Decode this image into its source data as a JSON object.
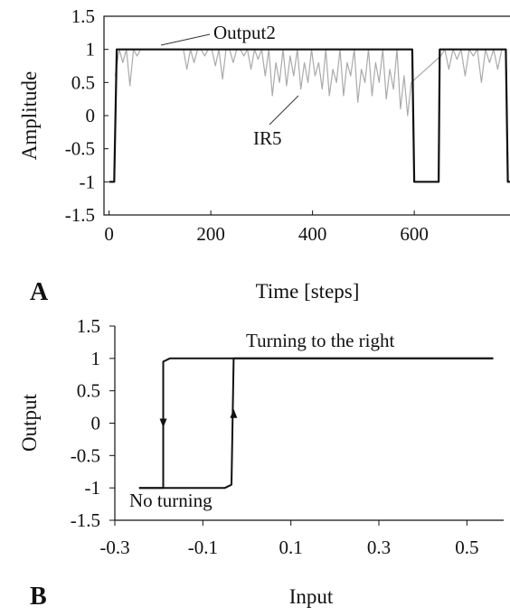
{
  "chart_data": [
    {
      "panel_label": "A",
      "type": "line",
      "xlabel": "Time [steps]",
      "ylabel": "Amplitude",
      "xlim": [
        -10,
        790
      ],
      "ylim": [
        -1.5,
        1.5
      ],
      "xticks": [
        0,
        200,
        400,
        600
      ],
      "yticks": [
        1.5,
        1,
        0.5,
        0,
        -0.5,
        -1,
        -1.5
      ],
      "xtick_labels": [
        "0",
        "200",
        "400",
        "600"
      ],
      "ytick_labels": [
        "1.5",
        "1",
        "0.5",
        "0",
        "-0.5",
        "-1",
        "-1.5"
      ],
      "series": [
        {
          "name": "Output2",
          "color": "#111111",
          "x": [
            0,
            10,
            15,
            596,
            600,
            648,
            650,
            780,
            784,
            790
          ],
          "y": [
            -1,
            -1,
            1,
            1,
            -1,
            -1,
            1,
            1,
            -1,
            -1
          ]
        },
        {
          "name": "IR5",
          "color": "#aaaaaa",
          "x": [
            12,
            20,
            27,
            34,
            41,
            48,
            55,
            62,
            69,
            76,
            83,
            90,
            97,
            104,
            111,
            118,
            125,
            132,
            139,
            146,
            153,
            160,
            167,
            174,
            181,
            188,
            195,
            202,
            209,
            216,
            223,
            230,
            237,
            244,
            251,
            258,
            265,
            272,
            279,
            286,
            293,
            300,
            307,
            314,
            321,
            328,
            335,
            342,
            349,
            356,
            363,
            370,
            377,
            384,
            391,
            398,
            405,
            412,
            419,
            426,
            433,
            440,
            447,
            454,
            461,
            468,
            475,
            482,
            489,
            496,
            503,
            510,
            517,
            524,
            531,
            538,
            545,
            552,
            559,
            566,
            573,
            580,
            587,
            594,
            652,
            660,
            668,
            676,
            684,
            692,
            700,
            708,
            716,
            724,
            732,
            740,
            748,
            756,
            764,
            772
          ],
          "y": [
            0.6,
            1,
            0.8,
            1,
            0.45,
            1,
            0.9,
            1,
            1,
            1,
            1,
            1,
            1,
            1,
            1,
            1,
            1,
            1,
            1,
            1,
            0.7,
            1,
            0.8,
            1,
            1,
            0.9,
            1,
            1,
            0.75,
            1,
            0.55,
            1,
            1,
            0.8,
            1,
            1,
            0.9,
            1,
            0.7,
            1,
            0.85,
            1,
            0.6,
            1,
            0.3,
            0.8,
            0.5,
            1,
            0.45,
            0.9,
            0.6,
            1,
            0.4,
            0.8,
            0.5,
            1,
            0.6,
            0.8,
            0.4,
            1,
            0.3,
            0.7,
            0.5,
            1,
            0.3,
            0.8,
            0.6,
            1,
            0.2,
            0.7,
            0.5,
            1,
            0.3,
            0.8,
            0.5,
            1,
            0.25,
            0.7,
            0.4,
            1,
            0.1,
            0.6,
            0.0,
            0.5,
            0.9,
            1,
            0.7,
            1,
            0.85,
            1,
            0.6,
            1,
            0.9,
            1,
            0.5,
            1,
            0.8,
            1,
            0.7,
            1
          ]
        }
      ],
      "annotations": [
        "Output2",
        "IR5"
      ]
    },
    {
      "panel_label": "B",
      "type": "line",
      "xlabel": "Input",
      "ylabel": "Output",
      "xlim": [
        -0.3,
        0.6
      ],
      "ylim": [
        -1.5,
        1.5
      ],
      "xticks": [
        -0.3,
        -0.1,
        0.1,
        0.3,
        0.5
      ],
      "yticks": [
        1.5,
        1,
        0.5,
        0,
        -0.5,
        -1,
        -1.5
      ],
      "xtick_labels": [
        "-0.3",
        "-0.1",
        "0.1",
        "0.3",
        "0.5"
      ],
      "ytick_labels": [
        "1.5",
        "1",
        "0.5",
        "0",
        "-0.5",
        "-1",
        "-1.5"
      ],
      "series": [
        {
          "color": "#111111",
          "x": [
            0.56,
            -0.03,
            -0.175,
            -0.19,
            -0.19,
            -0.245
          ],
          "y": [
            1,
            1,
            1,
            0.95,
            -1,
            -1
          ]
        },
        {
          "color": "#111111",
          "x": [
            -0.245,
            -0.05,
            -0.035,
            -0.03,
            0.56
          ],
          "y": [
            -1,
            -1,
            -0.95,
            1,
            1
          ]
        }
      ],
      "arrows": [
        {
          "x": -0.19,
          "y": 0,
          "direction": "down"
        },
        {
          "x": -0.03,
          "y": 0.15,
          "direction": "up"
        }
      ],
      "annotations": [
        "Turning to the right",
        "No turning"
      ]
    }
  ]
}
